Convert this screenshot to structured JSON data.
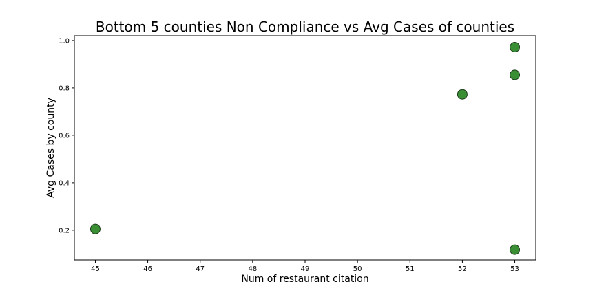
{
  "chart_data": {
    "type": "scatter",
    "title": "Bottom 5 counties Non Compliance vs Avg Cases of counties",
    "xlabel": "Num of restaurant citation",
    "ylabel": "Avg Cases by county",
    "x_ticks": [
      "45",
      "46",
      "47",
      "48",
      "49",
      "50",
      "51",
      "52",
      "53"
    ],
    "y_ticks": [
      "0.2",
      "0.4",
      "0.6",
      "0.8",
      "1.0"
    ],
    "xlim": [
      44.6,
      53.4
    ],
    "ylim": [
      0.075,
      1.02
    ],
    "grid": false,
    "marker_color": "#3a8f35",
    "marker_edge_color": "#1f3d1c",
    "series": [
      {
        "x": [
          45,
          52,
          53,
          53,
          53
        ],
        "y": [
          0.205,
          0.773,
          0.972,
          0.855,
          0.118
        ]
      }
    ]
  }
}
